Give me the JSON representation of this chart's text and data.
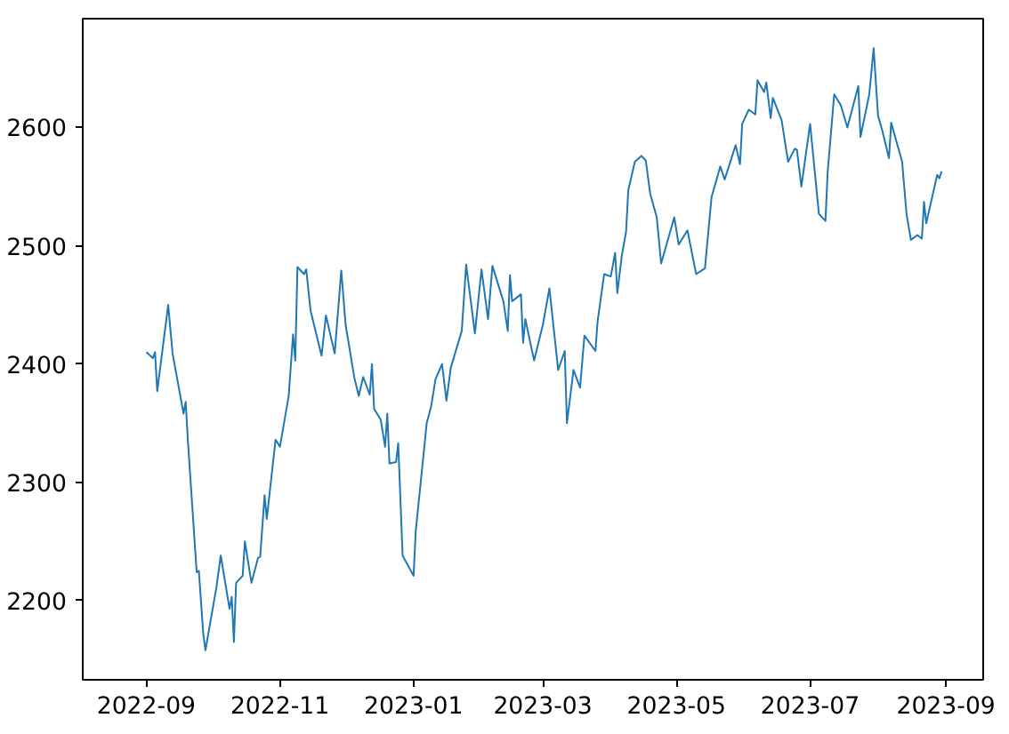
{
  "chart_data": {
    "type": "line",
    "x": [
      "2022-09-01",
      "2022-09-04",
      "2022-09-05",
      "2022-09-06",
      "2022-09-11",
      "2022-09-13",
      "2022-09-18",
      "2022-09-19",
      "2022-09-20",
      "2022-09-24",
      "2022-09-25",
      "2022-09-27",
      "2022-09-28",
      "2022-10-03",
      "2022-10-05",
      "2022-10-09",
      "2022-10-10",
      "2022-10-11",
      "2022-10-12",
      "2022-10-15",
      "2022-10-16",
      "2022-10-19",
      "2022-10-22",
      "2022-10-23",
      "2022-10-25",
      "2022-10-26",
      "2022-10-30",
      "2022-11-01",
      "2022-11-05",
      "2022-11-07",
      "2022-11-08",
      "2022-11-09",
      "2022-11-12",
      "2022-11-13",
      "2022-11-15",
      "2022-11-20",
      "2022-11-22",
      "2022-11-26",
      "2022-11-29",
      "2022-12-01",
      "2022-12-05",
      "2022-12-07",
      "2022-12-09",
      "2022-12-12",
      "2022-12-13",
      "2022-12-14",
      "2022-12-17",
      "2022-12-19",
      "2022-12-20",
      "2022-12-21",
      "2022-12-24",
      "2022-12-25",
      "2022-12-27",
      "2023-01-01",
      "2023-01-02",
      "2023-01-07",
      "2023-01-09",
      "2023-01-11",
      "2023-01-14",
      "2023-01-16",
      "2023-01-18",
      "2023-01-23",
      "2023-01-25",
      "2023-01-29",
      "2023-02-01",
      "2023-02-04",
      "2023-02-06",
      "2023-02-11",
      "2023-02-13",
      "2023-02-14",
      "2023-02-15",
      "2023-02-19",
      "2023-02-20",
      "2023-02-21",
      "2023-02-25",
      "2023-03-01",
      "2023-03-04",
      "2023-03-08",
      "2023-03-11",
      "2023-03-12",
      "2023-03-14",
      "2023-03-15",
      "2023-03-18",
      "2023-03-20",
      "2023-03-25",
      "2023-03-26",
      "2023-03-29",
      "2023-04-01",
      "2023-04-03",
      "2023-04-04",
      "2023-04-06",
      "2023-04-08",
      "2023-04-09",
      "2023-04-12",
      "2023-04-15",
      "2023-04-17",
      "2023-04-19",
      "2023-04-22",
      "2023-04-24",
      "2023-04-30",
      "2023-05-02",
      "2023-05-06",
      "2023-05-10",
      "2023-05-14",
      "2023-05-17",
      "2023-05-21",
      "2023-05-23",
      "2023-05-28",
      "2023-05-30",
      "2023-05-31",
      "2023-06-03",
      "2023-06-06",
      "2023-06-07",
      "2023-06-10",
      "2023-06-11",
      "2023-06-13",
      "2023-06-14",
      "2023-06-18",
      "2023-06-20",
      "2023-06-21",
      "2023-06-24",
      "2023-06-25",
      "2023-06-27",
      "2023-07-01",
      "2023-07-05",
      "2023-07-08",
      "2023-07-09",
      "2023-07-12",
      "2023-07-15",
      "2023-07-18",
      "2023-07-23",
      "2023-07-24",
      "2023-07-28",
      "2023-07-30",
      "2023-08-01",
      "2023-08-03",
      "2023-08-06",
      "2023-08-07",
      "2023-08-12",
      "2023-08-14",
      "2023-08-16",
      "2023-08-19",
      "2023-08-21",
      "2023-08-22",
      "2023-08-23",
      "2023-08-28",
      "2023-08-29",
      "2023-08-30"
    ],
    "series": [
      {
        "color": "#1f77b4",
        "values": [
          2410,
          2405,
          2410,
          2377,
          2450,
          2409,
          2358,
          2368,
          2335,
          2224,
          2225,
          2172,
          2158,
          2211,
          2238,
          2193,
          2203,
          2165,
          2215,
          2221,
          2250,
          2215,
          2236,
          2237,
          2289,
          2269,
          2336,
          2330,
          2373,
          2425,
          2403,
          2482,
          2476,
          2480,
          2445,
          2407,
          2441,
          2409,
          2479,
          2433,
          2388,
          2373,
          2389,
          2374,
          2400,
          2362,
          2353,
          2330,
          2358,
          2316,
          2317,
          2333,
          2238,
          2221,
          2259,
          2350,
          2364,
          2387,
          2400,
          2369,
          2397,
          2428,
          2484,
          2426,
          2480,
          2438,
          2483,
          2453,
          2428,
          2475,
          2453,
          2459,
          2418,
          2438,
          2403,
          2433,
          2464,
          2395,
          2411,
          2350,
          2380,
          2395,
          2380,
          2424,
          2411,
          2436,
          2476,
          2474,
          2494,
          2460,
          2491,
          2512,
          2547,
          2571,
          2576,
          2572,
          2544,
          2524,
          2485,
          2524,
          2501,
          2513,
          2476,
          2481,
          2541,
          2567,
          2556,
          2585,
          2569,
          2603,
          2615,
          2611,
          2640,
          2630,
          2638,
          2608,
          2625,
          2606,
          2582,
          2571,
          2582,
          2581,
          2550,
          2603,
          2527,
          2521,
          2562,
          2628,
          2619,
          2600,
          2635,
          2592,
          2628,
          2667,
          2610,
          2597,
          2574,
          2604,
          2571,
          2527,
          2505,
          2509,
          2506,
          2537,
          2519,
          2560,
          2557,
          2563
        ]
      }
    ],
    "xlim": [
      "2022-08-03",
      "2023-09-18"
    ],
    "xticks": [
      "2022-09",
      "2022-11",
      "2023-01",
      "2023-03",
      "2023-05",
      "2023-07",
      "2023-09"
    ],
    "ylim": [
      2133,
      2692
    ],
    "yticks": [
      2200,
      2300,
      2400,
      2500,
      2600
    ],
    "grid": false,
    "line_style": "solid"
  }
}
